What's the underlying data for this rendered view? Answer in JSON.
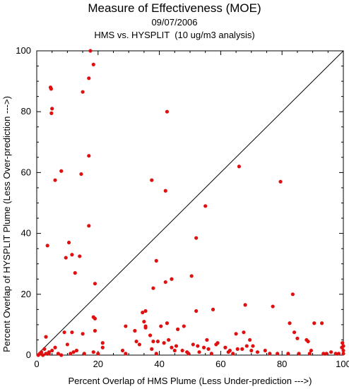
{
  "chart_data": {
    "type": "scatter",
    "title": "Measure of Effectiveness (MOE)",
    "date": "09/07/2006",
    "subtitle": "HMS vs. HYSPLIT  (10 ug/m3 analysis)",
    "xlabel": "Percent Overlap of HMS Plume (Less Under-prediction --->)",
    "ylabel": "Percent Overlap of HYSPLIT Plume (Less Over-prediction --->)",
    "xlim": [
      0,
      100
    ],
    "ylim": [
      0,
      100
    ],
    "x_ticks": [
      0,
      20,
      40,
      60,
      80,
      100
    ],
    "y_ticks": [
      0,
      20,
      40,
      60,
      80,
      100
    ],
    "reference_line": {
      "from": [
        0,
        0
      ],
      "to": [
        100,
        100
      ],
      "color": "#000000"
    },
    "grid": false,
    "marker_color": "#e01010",
    "points": [
      [
        17.5,
        100
      ],
      [
        18.5,
        95.5
      ],
      [
        17,
        91
      ],
      [
        4.5,
        88
      ],
      [
        4.7,
        87.5
      ],
      [
        15,
        86.5
      ],
      [
        5,
        81
      ],
      [
        4.8,
        79.5
      ],
      [
        42.5,
        80
      ],
      [
        17,
        65.5
      ],
      [
        8,
        60.5
      ],
      [
        14.5,
        59.5
      ],
      [
        6,
        57.5
      ],
      [
        37.5,
        57.5
      ],
      [
        66,
        62
      ],
      [
        79.5,
        57
      ],
      [
        42,
        54
      ],
      [
        55,
        49
      ],
      [
        17,
        42.5
      ],
      [
        52,
        38.5
      ],
      [
        10.5,
        37
      ],
      [
        3.5,
        36
      ],
      [
        11.5,
        33
      ],
      [
        9.5,
        32
      ],
      [
        14,
        32.5
      ],
      [
        12.5,
        27
      ],
      [
        39,
        31
      ],
      [
        19,
        23.5
      ],
      [
        44,
        25
      ],
      [
        42,
        24
      ],
      [
        50.5,
        26
      ],
      [
        38,
        22
      ],
      [
        83.5,
        20
      ],
      [
        18.5,
        12.5
      ],
      [
        19,
        12
      ],
      [
        35.5,
        14.5
      ],
      [
        34.5,
        14
      ],
      [
        52,
        14.5
      ],
      [
        57.5,
        15
      ],
      [
        68,
        16.5
      ],
      [
        77,
        16
      ],
      [
        9,
        7.5
      ],
      [
        11.5,
        7.5
      ],
      [
        15,
        7
      ],
      [
        19,
        8
      ],
      [
        10,
        3.5
      ],
      [
        6,
        2.5
      ],
      [
        5,
        1.5
      ],
      [
        3,
        6
      ],
      [
        2.5,
        2
      ],
      [
        1.5,
        1
      ],
      [
        1,
        0.5
      ],
      [
        0.5,
        0
      ],
      [
        3,
        0.5
      ],
      [
        4,
        0.5
      ],
      [
        4,
        1
      ],
      [
        2,
        0
      ],
      [
        7,
        0.5
      ],
      [
        8,
        0
      ],
      [
        11,
        0.5
      ],
      [
        12,
        1
      ],
      [
        13,
        1.5
      ],
      [
        15.5,
        0.5
      ],
      [
        18.5,
        1
      ],
      [
        20,
        0.5
      ],
      [
        21.5,
        4
      ],
      [
        21.5,
        2.5
      ],
      [
        28,
        1.5
      ],
      [
        29,
        0.5
      ],
      [
        29,
        9.5
      ],
      [
        32,
        8
      ],
      [
        32.5,
        4.5
      ],
      [
        33.5,
        3.5
      ],
      [
        35.5,
        9
      ],
      [
        35,
        11
      ],
      [
        35.5,
        9.5
      ],
      [
        37,
        6.5
      ],
      [
        37.5,
        2
      ],
      [
        38,
        4.5
      ],
      [
        39,
        0.5
      ],
      [
        39.5,
        4.5
      ],
      [
        40.5,
        9.5
      ],
      [
        41.5,
        4
      ],
      [
        42.5,
        10.5
      ],
      [
        43,
        5
      ],
      [
        44,
        2.5
      ],
      [
        45,
        1.5
      ],
      [
        45.5,
        3
      ],
      [
        46,
        8.5
      ],
      [
        47.5,
        1.5
      ],
      [
        48,
        9.5
      ],
      [
        49,
        1
      ],
      [
        49.5,
        0.5
      ],
      [
        51,
        3.5
      ],
      [
        52.5,
        3
      ],
      [
        53,
        1
      ],
      [
        54.5,
        2.5
      ],
      [
        55.5,
        5
      ],
      [
        56,
        2
      ],
      [
        57,
        0.5
      ],
      [
        58.5,
        3.5
      ],
      [
        59,
        4
      ],
      [
        61.5,
        2.5
      ],
      [
        62.5,
        1
      ],
      [
        63,
        1.5
      ],
      [
        64,
        0.5
      ],
      [
        65,
        7
      ],
      [
        65.5,
        2
      ],
      [
        67,
        2
      ],
      [
        67.5,
        7.5
      ],
      [
        68.5,
        3
      ],
      [
        69.5,
        5
      ],
      [
        70,
        1.5
      ],
      [
        70.5,
        3
      ],
      [
        72,
        1
      ],
      [
        74.5,
        1.5
      ],
      [
        76,
        0.5
      ],
      [
        78.5,
        0.5
      ],
      [
        82,
        0.5
      ],
      [
        82.5,
        10.5
      ],
      [
        84,
        7.5
      ],
      [
        85,
        5.5
      ],
      [
        85.5,
        0.5
      ],
      [
        88,
        5
      ],
      [
        88.5,
        4.5
      ],
      [
        89,
        0.5
      ],
      [
        89.5,
        1.5
      ],
      [
        90.5,
        10.5
      ],
      [
        93,
        10.5
      ],
      [
        93.5,
        0.5
      ],
      [
        94.5,
        0.5
      ],
      [
        96,
        1
      ],
      [
        97.5,
        0.5
      ],
      [
        98.5,
        0.5
      ],
      [
        99.5,
        2.5
      ],
      [
        99.7,
        4
      ],
      [
        100,
        1.5
      ],
      [
        100,
        0.5
      ],
      [
        100,
        3
      ]
    ]
  }
}
